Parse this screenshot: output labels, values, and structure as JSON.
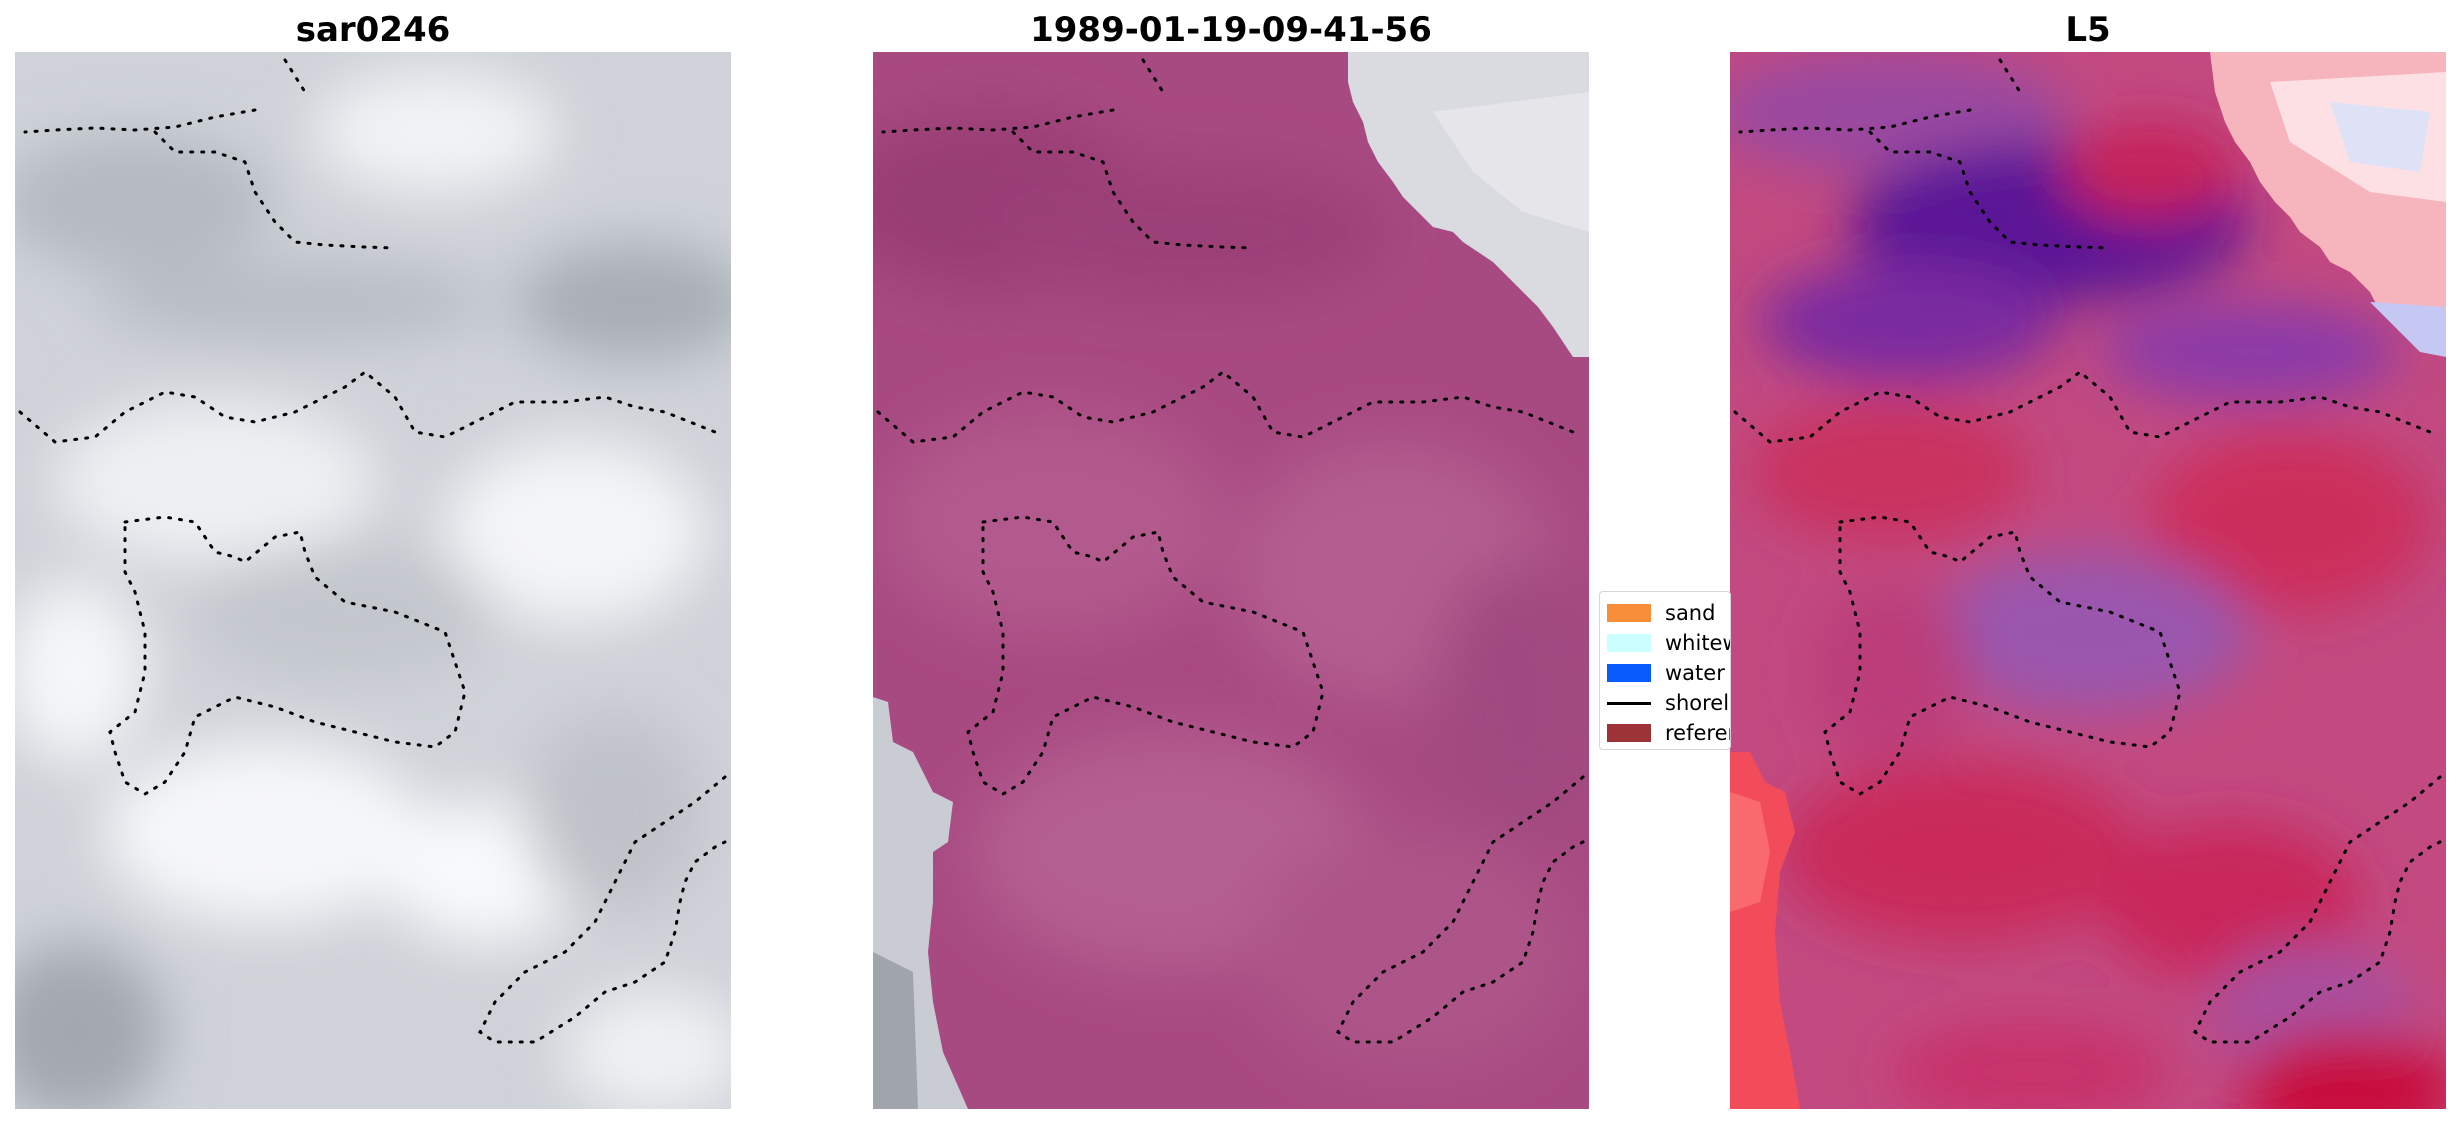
{
  "panels": [
    {
      "title": "sar0246"
    },
    {
      "title": "1989-01-19-09-41-56"
    },
    {
      "title": "L5"
    }
  ],
  "legend": {
    "items": [
      {
        "label": "sand",
        "color": "#f88e3a",
        "kind": "patch"
      },
      {
        "label": "whitewater",
        "color": "#ccffff",
        "kind": "patch"
      },
      {
        "label": "water",
        "color": "#0a5cff",
        "kind": "patch"
      },
      {
        "label": "shoreline",
        "color": "#000000",
        "kind": "line"
      },
      {
        "label": "reference",
        "color": "#9e3337",
        "kind": "patch"
      }
    ]
  },
  "colors": {
    "gray_light": "#e6e8ec",
    "gray_dark": "#a0a6ae",
    "magenta_overlay": "#a4477c",
    "l5_purple": "#6a1aa3",
    "l5_red": "#c81e44"
  }
}
